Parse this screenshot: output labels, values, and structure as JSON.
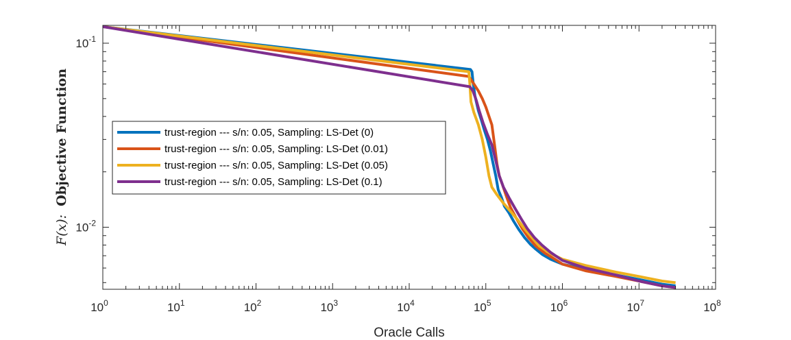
{
  "chart_data": {
    "type": "line",
    "title": "",
    "xlabel": "Oracle Calls",
    "ylabel": {
      "fx": "F(x):",
      "text": "Objective Function"
    },
    "xscale": "log",
    "yscale": "log",
    "xlim": [
      1,
      100000000
    ],
    "ylim": [
      0.0046,
      0.125
    ],
    "grid": false,
    "legend_location": "middle-left",
    "x_ticks": [
      {
        "base": "10",
        "exp": "0"
      },
      {
        "base": "10",
        "exp": "1"
      },
      {
        "base": "10",
        "exp": "2"
      },
      {
        "base": "10",
        "exp": "3"
      },
      {
        "base": "10",
        "exp": "4"
      },
      {
        "base": "10",
        "exp": "5"
      },
      {
        "base": "10",
        "exp": "6"
      },
      {
        "base": "10",
        "exp": "7"
      },
      {
        "base": "10",
        "exp": "8"
      }
    ],
    "y_ticks": [
      {
        "base": "10",
        "exp": "-1",
        "value": 0.1
      },
      {
        "base": "10",
        "exp": "-2",
        "value": 0.01
      }
    ],
    "series": [
      {
        "name": "trust-region --- s/n: 0.05, Sampling: LS-Det (0)",
        "color": "#0072BD",
        "points": [
          [
            1,
            0.123
          ],
          [
            63000,
            0.072
          ],
          [
            66000,
            0.07
          ],
          [
            68000,
            0.062
          ],
          [
            72000,
            0.052
          ],
          [
            80000,
            0.043
          ],
          [
            88000,
            0.038
          ],
          [
            95000,
            0.034
          ],
          [
            105000,
            0.03
          ],
          [
            115000,
            0.026
          ],
          [
            125000,
            0.022
          ],
          [
            135000,
            0.019
          ],
          [
            145000,
            0.016
          ],
          [
            160000,
            0.0145
          ],
          [
            175000,
            0.013
          ],
          [
            200000,
            0.012
          ],
          [
            230000,
            0.0108
          ],
          [
            270000,
            0.0097
          ],
          [
            320000,
            0.0088
          ],
          [
            380000,
            0.0081
          ],
          [
            450000,
            0.0076
          ],
          [
            550000,
            0.0071
          ],
          [
            700000,
            0.0067
          ],
          [
            1000000,
            0.0063
          ],
          [
            2000000,
            0.0059
          ],
          [
            5000000,
            0.0055
          ],
          [
            10000000,
            0.0052
          ],
          [
            20000000,
            0.0049
          ],
          [
            30000000,
            0.0048
          ]
        ]
      },
      {
        "name": "trust-region --- s/n: 0.05, Sampling: LS-Det (0.01)",
        "color": "#D95319",
        "points": [
          [
            1,
            0.123
          ],
          [
            60000,
            0.066
          ],
          [
            70000,
            0.06
          ],
          [
            80000,
            0.055
          ],
          [
            90000,
            0.05
          ],
          [
            100000,
            0.045
          ],
          [
            110000,
            0.04
          ],
          [
            120000,
            0.036
          ],
          [
            130000,
            0.028
          ],
          [
            140000,
            0.022
          ],
          [
            150000,
            0.019
          ],
          [
            165000,
            0.017
          ],
          [
            185000,
            0.0148
          ],
          [
            210000,
            0.0128
          ],
          [
            250000,
            0.0112
          ],
          [
            300000,
            0.0098
          ],
          [
            360000,
            0.0088
          ],
          [
            450000,
            0.0079
          ],
          [
            600000,
            0.0072
          ],
          [
            800000,
            0.0067
          ],
          [
            1000000,
            0.0063
          ],
          [
            2000000,
            0.0058
          ],
          [
            5000000,
            0.0054
          ],
          [
            10000000,
            0.0051
          ],
          [
            20000000,
            0.0048
          ],
          [
            30000000,
            0.0047
          ]
        ]
      },
      {
        "name": "trust-region --- s/n: 0.05, Sampling: LS-Det (0.05)",
        "color": "#EDB120",
        "points": [
          [
            1,
            0.123
          ],
          [
            60000,
            0.07
          ],
          [
            62000,
            0.06
          ],
          [
            64000,
            0.048
          ],
          [
            70000,
            0.042
          ],
          [
            80000,
            0.036
          ],
          [
            90000,
            0.03
          ],
          [
            100000,
            0.024
          ],
          [
            110000,
            0.019
          ],
          [
            120000,
            0.0165
          ],
          [
            140000,
            0.015
          ],
          [
            170000,
            0.0135
          ],
          [
            210000,
            0.0122
          ],
          [
            260000,
            0.011
          ],
          [
            320000,
            0.0098
          ],
          [
            400000,
            0.0088
          ],
          [
            500000,
            0.0079
          ],
          [
            700000,
            0.0072
          ],
          [
            1000000,
            0.0067
          ],
          [
            2000000,
            0.0062
          ],
          [
            5000000,
            0.0057
          ],
          [
            10000000,
            0.0054
          ],
          [
            20000000,
            0.0051
          ],
          [
            30000000,
            0.005
          ]
        ]
      },
      {
        "name": "trust-region --- s/n: 0.05, Sampling: LS-Det (0.1)",
        "color": "#7E2F8E",
        "points": [
          [
            1,
            0.123
          ],
          [
            62000,
            0.058
          ],
          [
            68000,
            0.055
          ],
          [
            75000,
            0.049
          ],
          [
            82000,
            0.043
          ],
          [
            92000,
            0.037
          ],
          [
            105000,
            0.032
          ],
          [
            120000,
            0.028
          ],
          [
            135000,
            0.023
          ],
          [
            150000,
            0.019
          ],
          [
            170000,
            0.0165
          ],
          [
            200000,
            0.0145
          ],
          [
            240000,
            0.0127
          ],
          [
            290000,
            0.0111
          ],
          [
            350000,
            0.0098
          ],
          [
            430000,
            0.0088
          ],
          [
            540000,
            0.008
          ],
          [
            700000,
            0.0073
          ],
          [
            1000000,
            0.0066
          ],
          [
            2000000,
            0.006
          ],
          [
            5000000,
            0.0055
          ],
          [
            10000000,
            0.0051
          ],
          [
            20000000,
            0.0048
          ],
          [
            30000000,
            0.0047
          ]
        ]
      }
    ]
  }
}
